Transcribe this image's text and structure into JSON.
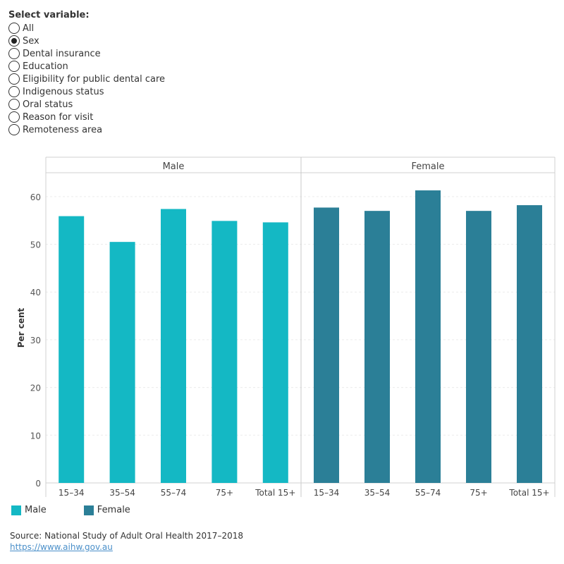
{
  "filter": {
    "title": "Select variable:",
    "options": [
      "All",
      "Sex",
      "Dental insurance",
      "Education",
      "Eligibility for public dental care",
      "Indigenous status",
      "Oral status",
      "Reason for visit",
      "Remoteness area"
    ],
    "selected": "Sex"
  },
  "chart_data": {
    "type": "bar",
    "ylabel": "Per cent",
    "ylim": [
      0,
      65
    ],
    "yticks": [
      0,
      10,
      20,
      30,
      40,
      50,
      60
    ],
    "categories": [
      "15–34",
      "35–54",
      "55–74",
      "75+",
      "Total 15+"
    ],
    "grid": true,
    "legend_position": "bottom-left",
    "series": [
      {
        "name": "Male",
        "color": "#14b8c4",
        "values": [
          55.9,
          50.5,
          57.4,
          54.9,
          54.6
        ]
      },
      {
        "name": "Female",
        "color": "#2b7f97",
        "values": [
          57.7,
          57.0,
          61.3,
          57.0,
          58.2
        ]
      }
    ]
  },
  "source": {
    "text": "Source: National Study of Adult Oral Health 2017–2018",
    "link": "https://www.aihw.gov.au"
  }
}
